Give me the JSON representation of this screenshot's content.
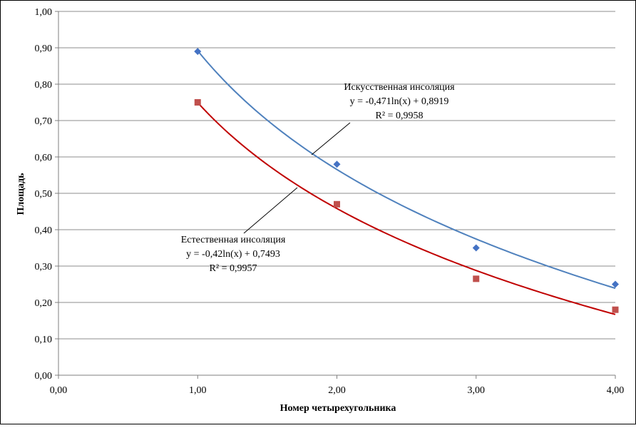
{
  "chart_data": {
    "type": "scatter",
    "xlabel": "Номер четырехугольника",
    "ylabel": "Площадь",
    "xlim": [
      0,
      4
    ],
    "ylim": [
      0,
      1
    ],
    "x_ticks": [
      "0,00",
      "1,00",
      "2,00",
      "3,00",
      "4,00"
    ],
    "y_ticks": [
      "0,00",
      "0,10",
      "0,20",
      "0,30",
      "0,40",
      "0,50",
      "0,60",
      "0,70",
      "0,80",
      "0,90",
      "1,00"
    ],
    "grid": "horizontal",
    "series": [
      {
        "key": "artificial",
        "marker": "diamond",
        "color": "#4472C4",
        "trend_color": "#4F81BD",
        "x": [
          1,
          2,
          3,
          4
        ],
        "y": [
          0.89,
          0.58,
          0.35,
          0.25
        ],
        "trendline": {
          "type": "log",
          "a": -0.471,
          "b": 0.8919
        },
        "annotation": [
          "Искусственная инсоляция",
          "y = -0,471ln(x) + 0,8919",
          "R² = 0,9958"
        ]
      },
      {
        "key": "natural",
        "marker": "square",
        "color": "#C0504D",
        "trend_color": "#C00000",
        "x": [
          1,
          2,
          3,
          4
        ],
        "y": [
          0.75,
          0.47,
          0.265,
          0.18
        ],
        "trendline": {
          "type": "log",
          "a": -0.42,
          "b": 0.7493
        },
        "annotation": [
          "Естественная инсоляция",
          "y = -0,42ln(x) + 0,7493",
          "R² = 0,9957"
        ]
      }
    ]
  }
}
